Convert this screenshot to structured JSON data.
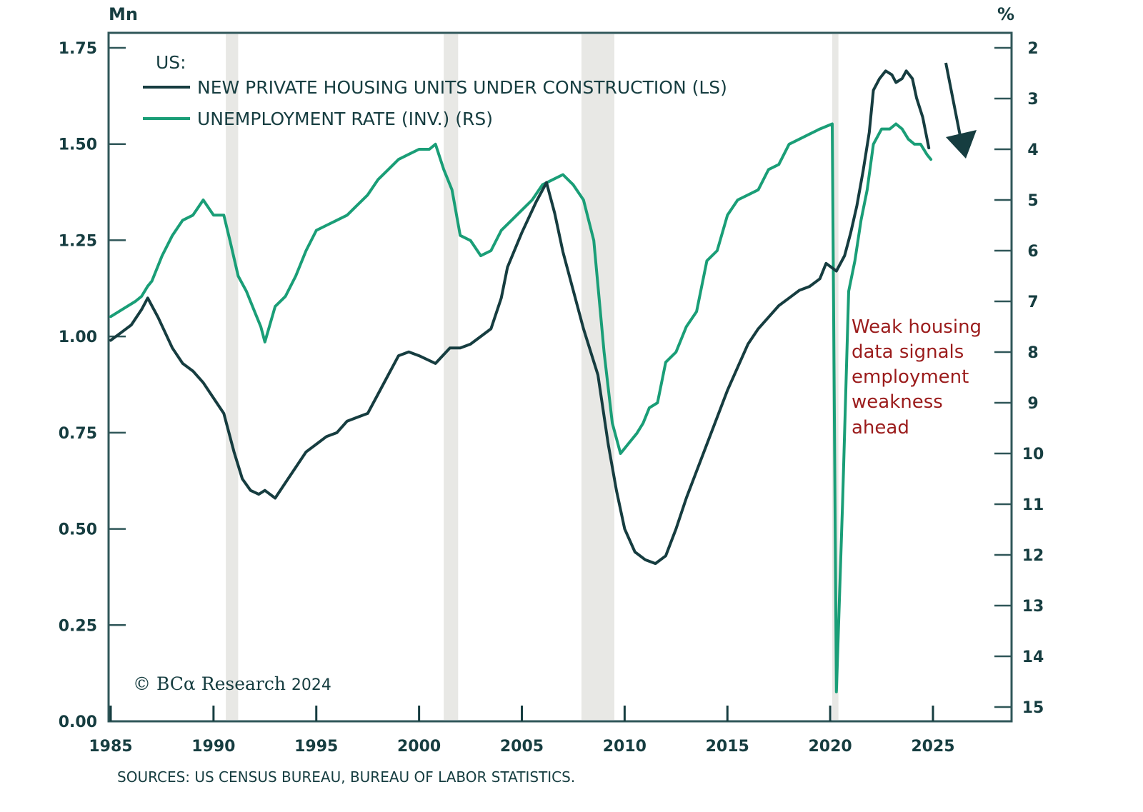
{
  "chart_data": {
    "type": "line",
    "title": "US:",
    "left_axis": {
      "unit_label": "Mn",
      "range": [
        0,
        1.75
      ],
      "ticks": [
        0,
        0.25,
        0.5,
        0.75,
        1.0,
        1.25,
        1.5,
        1.75
      ],
      "tick_labels": [
        "0.00",
        "0.25",
        "0.50",
        "0.75",
        "1.00",
        "1.25",
        "1.50",
        "1.75"
      ]
    },
    "right_axis": {
      "unit_label": "%",
      "inverted": true,
      "range": [
        2,
        15
      ],
      "ticks": [
        2,
        3,
        4,
        5,
        6,
        7,
        8,
        9,
        10,
        11,
        12,
        13,
        14,
        15
      ],
      "tick_labels": [
        "2",
        "3",
        "4",
        "5",
        "6",
        "7",
        "8",
        "9",
        "10",
        "11",
        "12",
        "13",
        "14",
        "15"
      ]
    },
    "x_axis": {
      "range": [
        1985,
        2028.8
      ],
      "ticks": [
        1985,
        1990,
        1995,
        2000,
        2005,
        2010,
        2015,
        2020,
        2025
      ],
      "tick_labels": [
        "1985",
        "1990",
        "1995",
        "2000",
        "2005",
        "2010",
        "2015",
        "2020",
        "2025"
      ]
    },
    "grid": false,
    "legend_position": "top-left",
    "recessions": [
      [
        1990.6,
        1991.2
      ],
      [
        2001.2,
        2001.9
      ],
      [
        2007.9,
        2009.5
      ],
      [
        2020.1,
        2020.4
      ]
    ],
    "series": [
      {
        "name": "NEW PRIVATE HOUSING UNITS UNDER CONSTRUCTION (LS)",
        "axis": "left",
        "color": "#163d40",
        "x": [
          1985,
          1985.5,
          1986,
          1986.5,
          1986.8,
          1987.3,
          1988,
          1988.5,
          1989,
          1989.5,
          1990,
          1990.5,
          1991,
          1991.4,
          1991.8,
          1992.2,
          1992.5,
          1993,
          1993.5,
          1994,
          1994.5,
          1995,
          1995.5,
          1996,
          1996.5,
          1997,
          1997.5,
          1998,
          1998.5,
          1999,
          1999.5,
          2000,
          2000.8,
          2001.5,
          2002,
          2002.5,
          2003,
          2003.5,
          2004,
          2004.3,
          2005,
          2005.7,
          2006.2,
          2006.6,
          2007,
          2007.5,
          2008,
          2008.7,
          2009.2,
          2009.6,
          2010,
          2010.5,
          2011,
          2011.5,
          2012,
          2012.5,
          2013,
          2013.5,
          2014,
          2014.5,
          2015,
          2015.5,
          2016,
          2016.5,
          2017,
          2017.5,
          2018,
          2018.5,
          2019,
          2019.5,
          2019.8,
          2020.3,
          2020.7,
          2021,
          2021.3,
          2021.6,
          2021.9,
          2022.1,
          2022.4,
          2022.7,
          2023,
          2023.2,
          2023.5,
          2023.7,
          2024,
          2024.2,
          2024.5,
          2024.8
        ],
        "values": [
          0.99,
          1.01,
          1.03,
          1.07,
          1.1,
          1.05,
          0.97,
          0.93,
          0.91,
          0.88,
          0.84,
          0.8,
          0.7,
          0.63,
          0.6,
          0.59,
          0.6,
          0.58,
          0.62,
          0.66,
          0.7,
          0.72,
          0.74,
          0.75,
          0.78,
          0.79,
          0.8,
          0.85,
          0.9,
          0.95,
          0.96,
          0.95,
          0.93,
          0.97,
          0.97,
          0.98,
          1.0,
          1.02,
          1.1,
          1.18,
          1.27,
          1.35,
          1.4,
          1.32,
          1.22,
          1.12,
          1.02,
          0.9,
          0.72,
          0.6,
          0.5,
          0.44,
          0.42,
          0.41,
          0.43,
          0.5,
          0.58,
          0.65,
          0.72,
          0.79,
          0.86,
          0.92,
          0.98,
          1.02,
          1.05,
          1.08,
          1.1,
          1.12,
          1.13,
          1.15,
          1.19,
          1.17,
          1.21,
          1.27,
          1.34,
          1.43,
          1.53,
          1.64,
          1.67,
          1.69,
          1.68,
          1.66,
          1.67,
          1.69,
          1.67,
          1.62,
          1.57,
          1.49
        ]
      },
      {
        "name": "UNEMPLOYMENT RATE (INV.) (RS)",
        "axis": "right",
        "color": "#1a9e77",
        "x": [
          1985,
          1985.4,
          1985.8,
          1986.2,
          1986.5,
          1986.8,
          1987,
          1987.5,
          1988,
          1988.5,
          1989,
          1989.5,
          1990,
          1990.5,
          1990.8,
          1991.2,
          1991.6,
          1992,
          1992.3,
          1992.5,
          1993,
          1993.5,
          1994,
          1994.5,
          1995,
          1995.5,
          1996,
          1996.5,
          1997,
          1997.5,
          1998,
          1998.5,
          1999,
          1999.5,
          2000,
          2000.5,
          2000.8,
          2001.2,
          2001.6,
          2002,
          2002.5,
          2003,
          2003.5,
          2004,
          2004.5,
          2005,
          2005.5,
          2006,
          2006.5,
          2007,
          2007.5,
          2008,
          2008.5,
          2009,
          2009.4,
          2009.8,
          2010.2,
          2010.6,
          2010.9,
          2011.2,
          2011.6,
          2012,
          2012.5,
          2013,
          2013.5,
          2014,
          2014.5,
          2015,
          2015.5,
          2016,
          2016.5,
          2017,
          2017.5,
          2018,
          2018.5,
          2019,
          2019.5,
          2020.1,
          2020.3,
          2020.6,
          2020.9,
          2021.2,
          2021.5,
          2021.8,
          2022.1,
          2022.5,
          2022.9,
          2023.2,
          2023.5,
          2023.8,
          2024.1,
          2024.4,
          2024.7,
          2024.9
        ],
        "values": [
          7.3,
          7.2,
          7.1,
          7.0,
          6.9,
          6.7,
          6.6,
          6.1,
          5.7,
          5.4,
          5.3,
          5.0,
          5.3,
          5.3,
          5.8,
          6.5,
          6.8,
          7.2,
          7.5,
          7.8,
          7.1,
          6.9,
          6.5,
          6.0,
          5.6,
          5.5,
          5.4,
          5.3,
          5.1,
          4.9,
          4.6,
          4.4,
          4.2,
          4.1,
          4.0,
          4.0,
          3.9,
          4.4,
          4.8,
          5.7,
          5.8,
          6.1,
          6.0,
          5.6,
          5.4,
          5.2,
          5.0,
          4.7,
          4.6,
          4.5,
          4.7,
          5.0,
          5.8,
          8.0,
          9.4,
          10.0,
          9.8,
          9.6,
          9.4,
          9.1,
          9.0,
          8.2,
          8.0,
          7.5,
          7.2,
          6.2,
          6.0,
          5.3,
          5.0,
          4.9,
          4.8,
          4.4,
          4.3,
          3.9,
          3.8,
          3.7,
          3.6,
          3.5,
          14.7,
          11.0,
          6.8,
          6.2,
          5.4,
          4.8,
          3.9,
          3.6,
          3.6,
          3.5,
          3.6,
          3.8,
          3.9,
          3.9,
          4.1,
          4.2
        ]
      }
    ],
    "annotation": {
      "lines": [
        "Weak housing",
        "data signals",
        "employment",
        "weakness",
        "ahead"
      ],
      "color": "#9b1c1c"
    },
    "arrow": {
      "direction": "down",
      "meaning": "housing trend down"
    },
    "source": "SOURCES: US CENSUS BUREAU, BUREAU OF LABOR STATISTICS.",
    "copyright": {
      "prefix": "© BC",
      "alpha": "α",
      "name": " Research ",
      "year": "2024"
    }
  },
  "colors": {
    "frame": "#2f5658",
    "axis_text": "#163d40",
    "recession_band": "#e8e8e5",
    "housing_line": "#163d40",
    "unemployment_line": "#1a9e77",
    "annotation": "#9b1c1c"
  }
}
